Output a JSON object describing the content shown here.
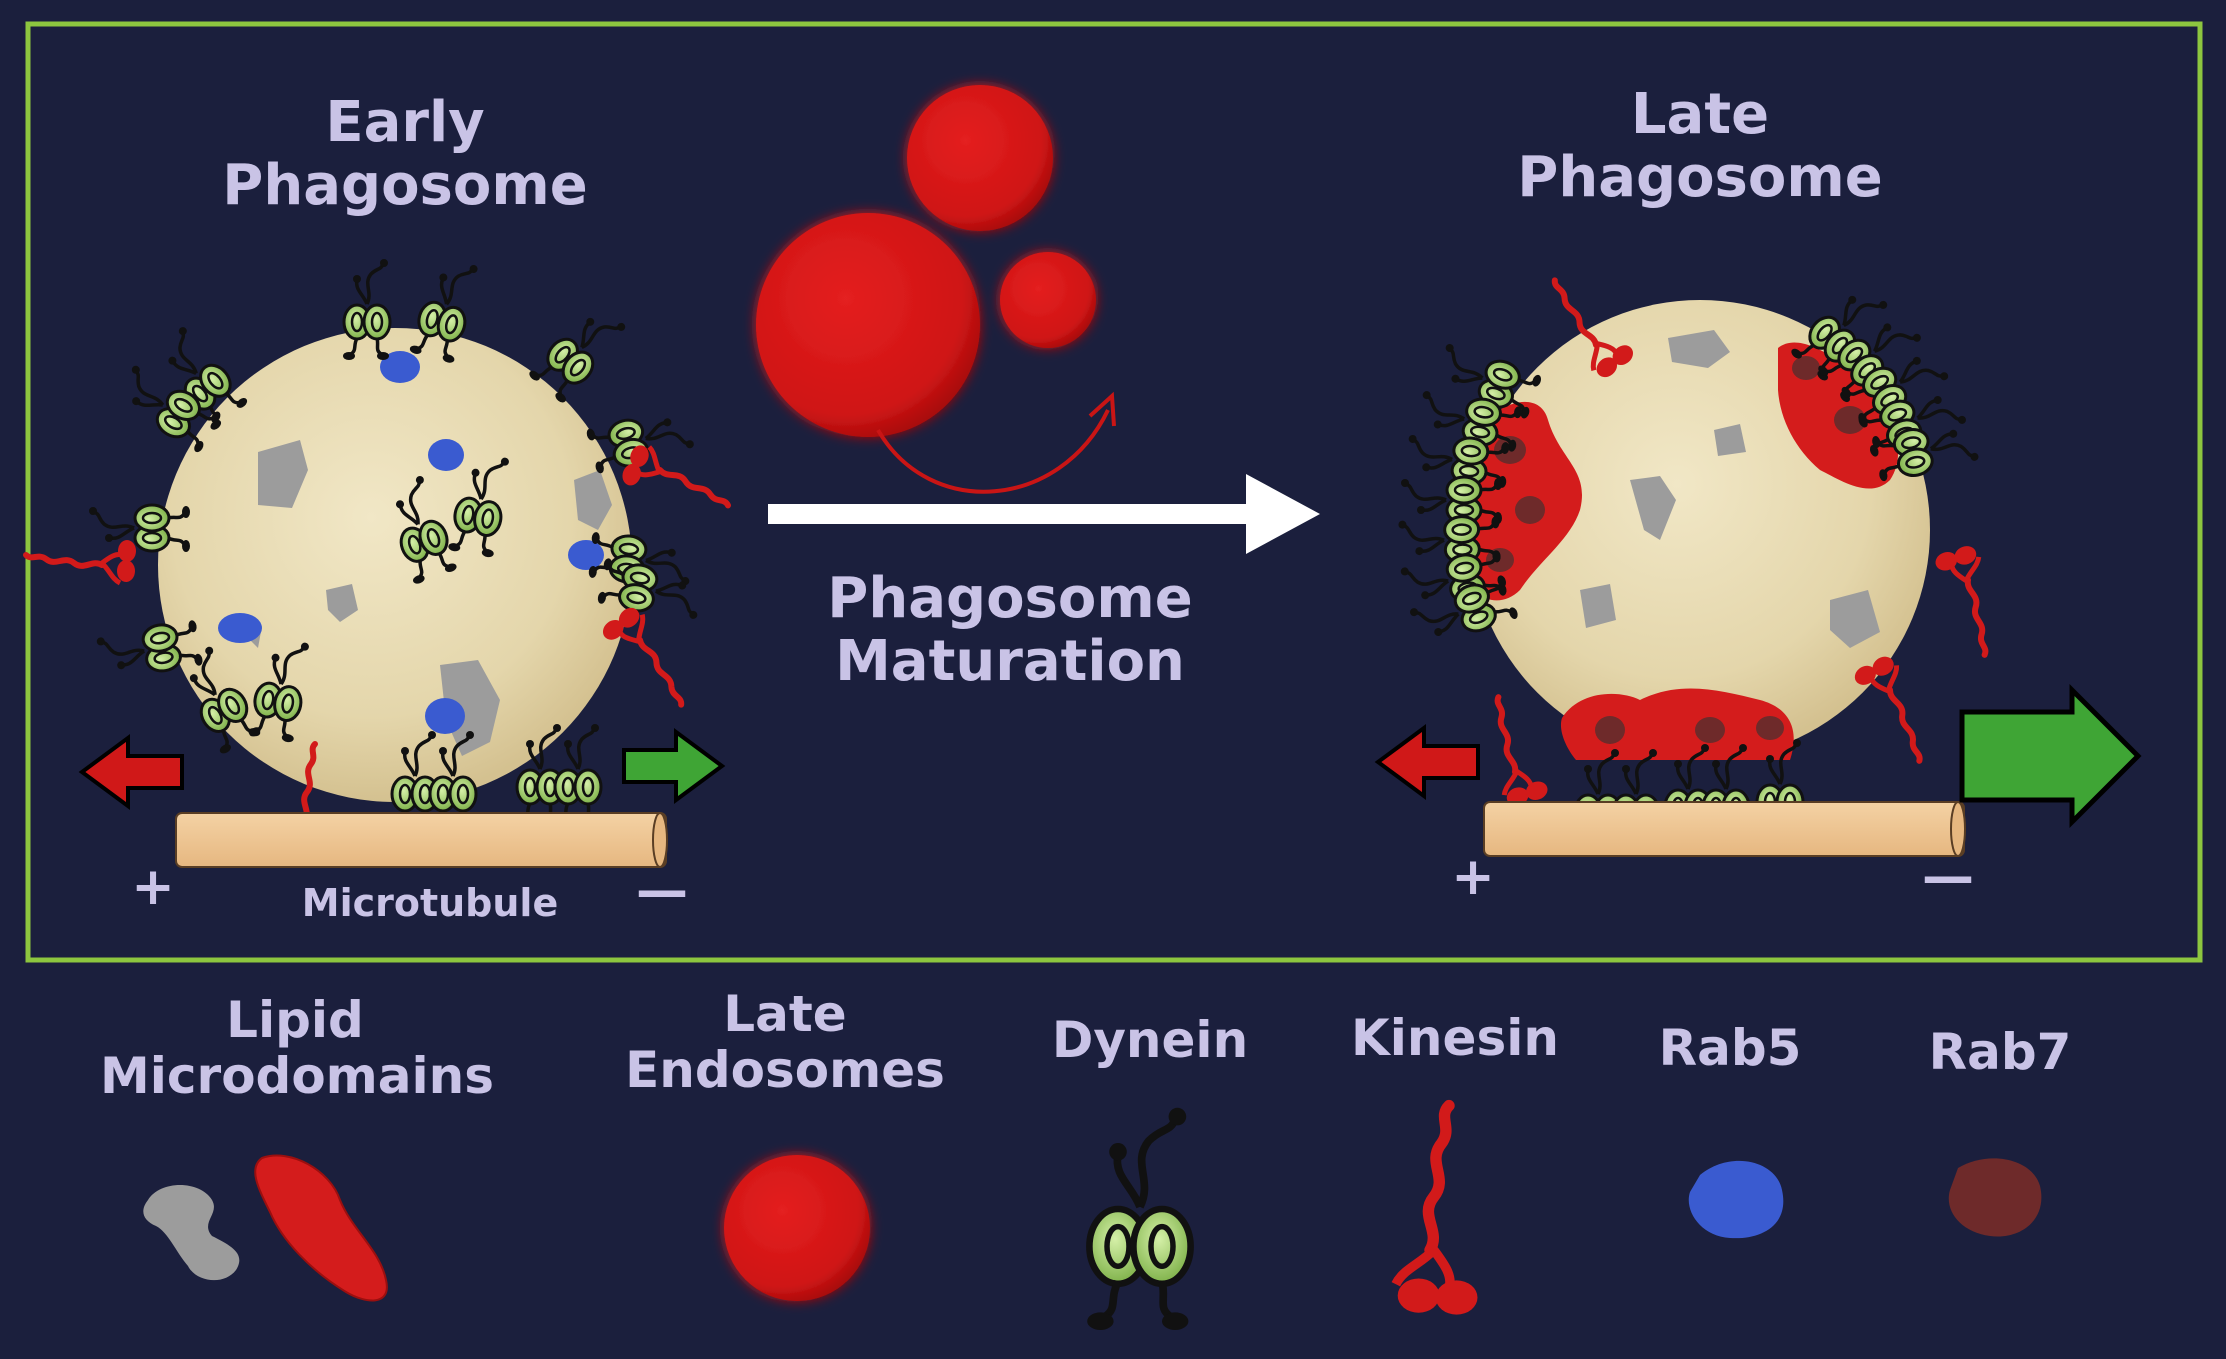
{
  "diagram": {
    "early_title": [
      "Early",
      "Phagosome"
    ],
    "late_title": [
      "Late",
      "Phagosome"
    ],
    "process_label": [
      "Phagosome",
      "Maturation"
    ],
    "microtubule_label": "Microtubule",
    "plus_sign": "+",
    "minus_sign": "—"
  },
  "legend": {
    "lipid": [
      "Lipid",
      "Microdomains"
    ],
    "late_endosomes": [
      "Late",
      "Endosomes"
    ],
    "dynein": "Dynein",
    "kinesin": "Kinesin",
    "rab5": "Rab5",
    "rab7": "Rab7"
  },
  "colors": {
    "background": "#1b1f3d",
    "panel_border": "#8dc63f",
    "label": "#c9c3e6",
    "phagosome_fill": "#e8dcb4",
    "endosome_red": "#d41c1c",
    "rab5_blue": "#3a5bd0",
    "rab7_brown": "#6e2a2a",
    "dynein_green": "#9bd06a",
    "microtubule": "#eec592",
    "arrow_green": "#3fa535",
    "arrow_red": "#d01818"
  },
  "icons": [
    "dynein-icon",
    "kinesin-icon",
    "rab5-icon",
    "rab7-icon",
    "lipid-raft-icon",
    "late-endosome-icon"
  ]
}
